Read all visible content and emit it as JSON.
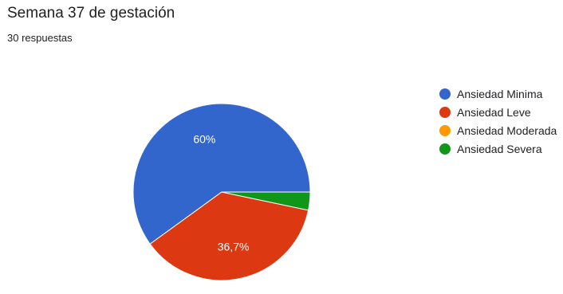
{
  "title": "Semana 37 de gestación",
  "subtitle": "30 respuestas",
  "chart_data": {
    "type": "pie",
    "title": "Semana 37 de gestación",
    "categories": [
      "Ansiedad Minima",
      "Ansiedad Leve",
      "Ansiedad Moderada",
      "Ansiedad Severa"
    ],
    "values": [
      60,
      36.7,
      0,
      3.3
    ],
    "unit": "%",
    "data_labels": [
      "60%",
      "36,7%",
      "",
      ""
    ],
    "colors": [
      "#3366cc",
      "#dc3912",
      "#ff9900",
      "#109618"
    ],
    "legend_position": "right"
  }
}
